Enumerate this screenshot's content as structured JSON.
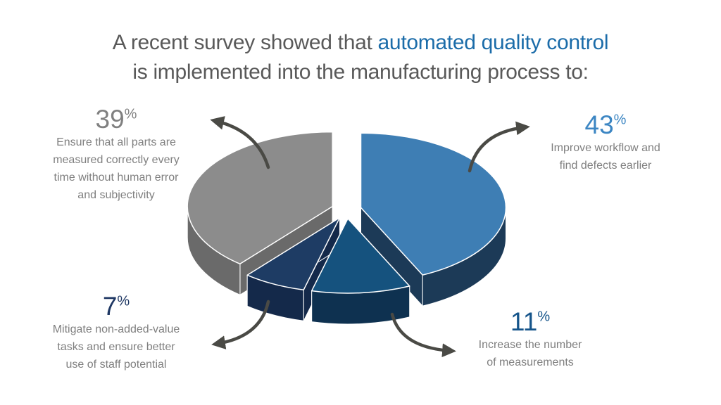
{
  "title": {
    "line1_prefix": "A recent survey showed that ",
    "line1_highlight": "automated quality control",
    "line2": "is implemented into the manufacturing process to:",
    "color": "#595959",
    "highlight_color": "#1B6CA9"
  },
  "chart_data": {
    "type": "pie",
    "style": "3d-exploded",
    "unit": "%",
    "start_angle_deg": 0,
    "direction": "clockwise",
    "slices": [
      {
        "label": "Improve workflow and find defects earlier",
        "value": 43,
        "color_top": "#3E7EB4",
        "color_side": "#1C3A57"
      },
      {
        "label": "Increase the number of measurements",
        "value": 11,
        "color_top": "#15527E",
        "color_side": "#0E3150"
      },
      {
        "label": "Mitigate non-added-value tasks and ensure better use of staff potential",
        "value": 7,
        "color_top": "#1E3C64",
        "color_side": "#14294A"
      },
      {
        "label": "Ensure that all parts are measured correctly every time without human error and subjectivity",
        "value": 39,
        "color_top": "#8C8C8C",
        "color_side": "#6A6A6A"
      }
    ]
  },
  "callouts": [
    {
      "value": "43",
      "suffix": "%",
      "color": "#3C86C3",
      "lines": [
        "Improve workflow and",
        "find defects earlier"
      ]
    },
    {
      "value": "11",
      "suffix": "%",
      "color": "#15548A",
      "lines": [
        "Increase the number",
        "of measurements"
      ]
    },
    {
      "value": "7",
      "suffix": "%",
      "color": "#1F3864",
      "lines": [
        "Mitigate non-added-value",
        "tasks and ensure better",
        "use of staff potential"
      ]
    },
    {
      "value": "39",
      "suffix": "%",
      "color": "#808080",
      "lines": [
        "Ensure that all parts are",
        "measured correctly every",
        "time without human error",
        "and subjectivity"
      ]
    }
  ],
  "body_text_color": "#7F7F7F",
  "arrows": {
    "color": "#4A4A45"
  }
}
